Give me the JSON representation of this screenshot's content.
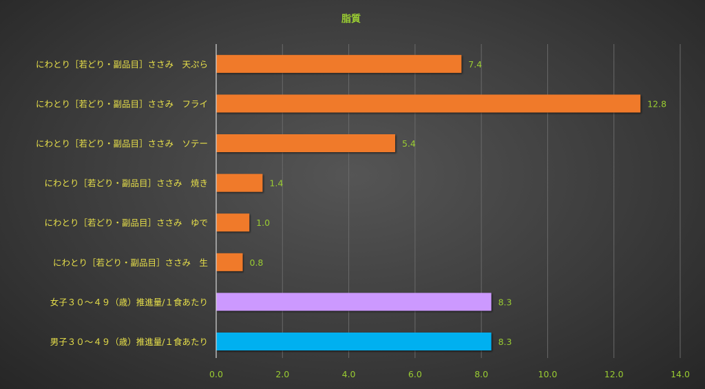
{
  "chart_data": {
    "type": "bar",
    "orientation": "horizontal",
    "title": "脂質",
    "categories": [
      "にわとり［若どり・副品目］ささみ　天ぷら",
      "にわとり［若どり・副品目］ささみ　フライ",
      "にわとり［若どり・副品目］ささみ　ソテー",
      "にわとり［若どり・副品目］ささみ　焼き",
      "にわとり［若どり・副品目］ささみ　ゆで",
      "にわとり［若どり・副品目］ささみ　生",
      "女子３０～４９（歳）推進量/１食あたり",
      "男子３０～４９（歳）推進量/１食あたり"
    ],
    "values": [
      7.4,
      12.8,
      5.4,
      1.4,
      1.0,
      0.8,
      8.3,
      8.3
    ],
    "value_labels": [
      "7.4",
      "12.8",
      "5.4",
      "1.4",
      "1.0",
      "0.8",
      "8.3",
      "8.3"
    ],
    "bar_colors": [
      "#f07a2a",
      "#f07a2a",
      "#f07a2a",
      "#f07a2a",
      "#f07a2a",
      "#f07a2a",
      "#cc99ff",
      "#00b0f0"
    ],
    "xlim": [
      0,
      14
    ],
    "x_ticks": [
      "0.0",
      "2.0",
      "4.0",
      "6.0",
      "8.0",
      "10.0",
      "12.0",
      "14.0"
    ],
    "xlabel": "",
    "ylabel": "",
    "grid": true,
    "legend": "none"
  }
}
